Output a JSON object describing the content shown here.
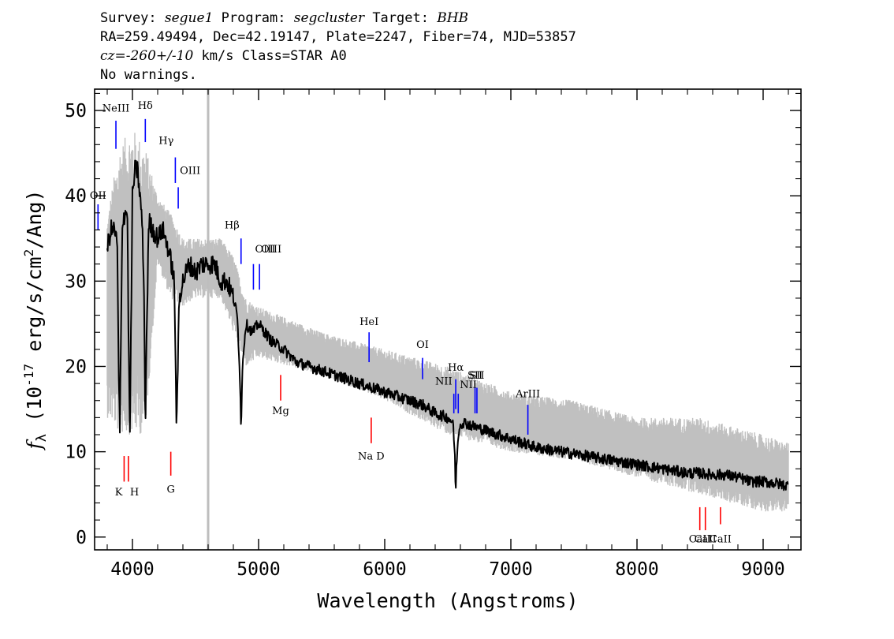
{
  "header": {
    "line1": [
      {
        "text": "Survey: ",
        "style": "normal"
      },
      {
        "text": "segue1",
        "style": "italic"
      },
      {
        "text": " Program: ",
        "style": "normal"
      },
      {
        "text": "segcluster",
        "style": "italic"
      },
      {
        "text": " Target: ",
        "style": "normal"
      },
      {
        "text": "BHB",
        "style": "italic"
      }
    ],
    "line2": "RA=259.49494, Dec=42.19147, Plate=2247, Fiber=74, MJD=53857",
    "line3": [
      {
        "text": "cz=",
        "style": "italic"
      },
      {
        "text": "-260+/-10",
        "style": "italic"
      },
      {
        "text": " km/s Class=STAR A0",
        "style": "normal"
      }
    ],
    "line4": "No warnings."
  },
  "chart_data": {
    "type": "line",
    "xlabel": "Wavelength (Angstroms)",
    "ylabel": "f_λ (10^-17 erg/s/cm^2/Ang)",
    "ylabel_parts": {
      "f": "f",
      "sub": "λ",
      "pre": " (10",
      "sup1": "-17",
      "mid": " erg/s/cm",
      "sup2": "2",
      "post": "/Ang)"
    },
    "xlim": [
      3700,
      9300
    ],
    "ylim": [
      -1.5,
      52.5
    ],
    "xticks": [
      4000,
      5000,
      6000,
      7000,
      8000,
      9000
    ],
    "yticks": [
      0,
      10,
      20,
      30,
      40,
      50
    ],
    "vertical_marker_x": 4600,
    "colors": {
      "flux": "#000000",
      "error_band": "#c0c0c0",
      "emission": "#0000ff",
      "absorption": "#ff0000",
      "marker": "#bebebe"
    },
    "series": [
      {
        "role": "flux",
        "x": [
          3800,
          3830,
          3860,
          3880,
          3890,
          3900,
          3920,
          3940,
          3960,
          3970,
          3980,
          4000,
          4020,
          4040,
          4060,
          4080,
          4095,
          4102,
          4110,
          4130,
          4160,
          4200,
          4240,
          4280,
          4310,
          4330,
          4340,
          4350,
          4370,
          4400,
          4450,
          4500,
          4550,
          4600,
          4650,
          4700,
          4750,
          4800,
          4830,
          4850,
          4861,
          4875,
          4900,
          4950,
          5000,
          5100,
          5200,
          5300,
          5400,
          5500,
          5600,
          5700,
          5800,
          5900,
          6000,
          6100,
          6200,
          6300,
          6400,
          6500,
          6540,
          6555,
          6563,
          6570,
          6590,
          6620,
          6700,
          6800,
          6900,
          7000,
          7100,
          7200,
          7400,
          7600,
          7800,
          8000,
          8200,
          8400,
          8500,
          8600,
          8700,
          8800,
          8900,
          9000,
          9100,
          9200
        ],
        "y": [
          34,
          36,
          36,
          34,
          20,
          12,
          37,
          38,
          38,
          22,
          12,
          40,
          43,
          43,
          40,
          36,
          25,
          12,
          22,
          37,
          36,
          35,
          36,
          34,
          32,
          30,
          23,
          12,
          28,
          30,
          32,
          31,
          32,
          32,
          32,
          30,
          30,
          28,
          26,
          20,
          13,
          21,
          25,
          24,
          25,
          23,
          22,
          20.5,
          20,
          19.5,
          19,
          18.5,
          18,
          17.5,
          17,
          16.5,
          16,
          15.5,
          14.5,
          14,
          13.5,
          10,
          5,
          9,
          13,
          13.5,
          13,
          12.5,
          12,
          11.5,
          11,
          10.5,
          10,
          9.5,
          9,
          8.5,
          8,
          7.5,
          7.5,
          7.3,
          7.3,
          7,
          6.5,
          6.5,
          6.3,
          6
        ]
      },
      {
        "role": "error_band",
        "x": [
          3800,
          3900,
          4000,
          4100,
          4200,
          4300,
          4400,
          4500,
          4600,
          4700,
          4800,
          4900,
          5000,
          5500,
          6000,
          6500,
          7000,
          7500,
          8000,
          8500,
          9000,
          9200
        ],
        "y_upper": [
          38,
          46,
          48,
          46,
          40,
          38,
          35,
          35,
          35,
          35,
          33,
          28,
          27,
          24,
          22,
          20,
          17,
          16,
          14,
          14,
          12,
          11
        ],
        "y_lower": [
          14,
          12,
          12,
          12,
          32,
          28,
          27,
          28,
          28,
          28,
          24,
          20,
          21,
          19,
          16,
          12,
          10,
          9,
          7,
          5,
          3,
          3
        ]
      }
    ],
    "annotations": {
      "emission": [
        {
          "label": "NeIII",
          "x": 3869,
          "y_top": 48.8,
          "y_bot": 45.5,
          "label_y": 49.5,
          "anchor": "middle"
        },
        {
          "label": "Hδ",
          "x": 4102,
          "y_top": 49,
          "y_bot": 46.3,
          "label_y": 49.8,
          "anchor": "middle"
        },
        {
          "label": "Hγ",
          "x": 4340,
          "y_top": 44.5,
          "y_bot": 41.5,
          "label_y": 45.7,
          "anchor": "end"
        },
        {
          "label": "OIII",
          "x": 4363,
          "y_top": 41,
          "y_bot": 38.5,
          "label_y": 42.2,
          "anchor": "start"
        },
        {
          "label": "OII",
          "x": 3727,
          "y_top": 39,
          "y_bot": 36,
          "label_y": 39.3,
          "anchor": "middle"
        },
        {
          "label": "Hβ",
          "x": 4861,
          "y_top": 35,
          "y_bot": 32,
          "label_y": 35.8,
          "anchor": "end"
        },
        {
          "label": "OIII",
          "x": 4959,
          "y_top": 32,
          "y_bot": 29,
          "label_y": 33,
          "anchor": "start"
        },
        {
          "label": "OIII",
          "x": 5007,
          "y_top": 32,
          "y_bot": 29,
          "label_y": 33,
          "anchor": "start"
        },
        {
          "label": "HeI",
          "x": 5876,
          "y_top": 24,
          "y_bot": 20.5,
          "label_y": 24.5,
          "anchor": "middle"
        },
        {
          "label": "OI",
          "x": 6300,
          "y_top": 21,
          "y_bot": 18.5,
          "label_y": 21.8,
          "anchor": "middle"
        },
        {
          "label": "Hα",
          "x": 6563,
          "y_top": 18.5,
          "y_bot": 15,
          "label_y": 19.1,
          "anchor": "middle"
        },
        {
          "label": "NII",
          "x": 6548,
          "y_top": 16.8,
          "y_bot": 14.5,
          "label_y": 17.5,
          "anchor": "end"
        },
        {
          "label": "NII",
          "x": 6583,
          "y_top": 16.8,
          "y_bot": 14.5,
          "label_y": 17.1,
          "anchor": "start"
        },
        {
          "label": "SII",
          "x": 6716,
          "y_top": 17.5,
          "y_bot": 14.5,
          "label_y": 18.2,
          "anchor": "middle"
        },
        {
          "label": "SII",
          "x": 6731,
          "y_top": 17.5,
          "y_bot": 14.5,
          "label_y": 18.2,
          "anchor": "middle"
        },
        {
          "label": "ArIII",
          "x": 7135,
          "y_top": 15.5,
          "y_bot": 12,
          "label_y": 16,
          "anchor": "middle"
        }
      ],
      "absorption": [
        {
          "label": "K",
          "x": 3934,
          "y_top": 9.5,
          "y_bot": 6.5,
          "label_y": 6,
          "anchor": "end"
        },
        {
          "label": "H",
          "x": 3968,
          "y_top": 9.5,
          "y_bot": 6.5,
          "label_y": 6,
          "anchor": "start"
        },
        {
          "label": "G",
          "x": 4304,
          "y_top": 10,
          "y_bot": 7.2,
          "label_y": 6.3,
          "anchor": "middle"
        },
        {
          "label": "Mg",
          "x": 5175,
          "y_top": 19,
          "y_bot": 16,
          "label_y": 15.5,
          "anchor": "middle"
        },
        {
          "label": "Na D",
          "x": 5893,
          "y_top": 14,
          "y_bot": 11,
          "label_y": 10.2,
          "anchor": "middle"
        },
        {
          "label": "CaII",
          "x": 8498,
          "y_top": 3.5,
          "y_bot": 0.8,
          "label_y": 0.5,
          "anchor": "middle"
        },
        {
          "label": "CaII",
          "x": 8542,
          "y_top": 3.5,
          "y_bot": 0.8,
          "label_y": 0.5,
          "anchor": "middle"
        },
        {
          "label": "CaII",
          "x": 8662,
          "y_top": 3.5,
          "y_bot": 1.5,
          "label_y": 0.5,
          "anchor": "middle"
        }
      ]
    }
  }
}
